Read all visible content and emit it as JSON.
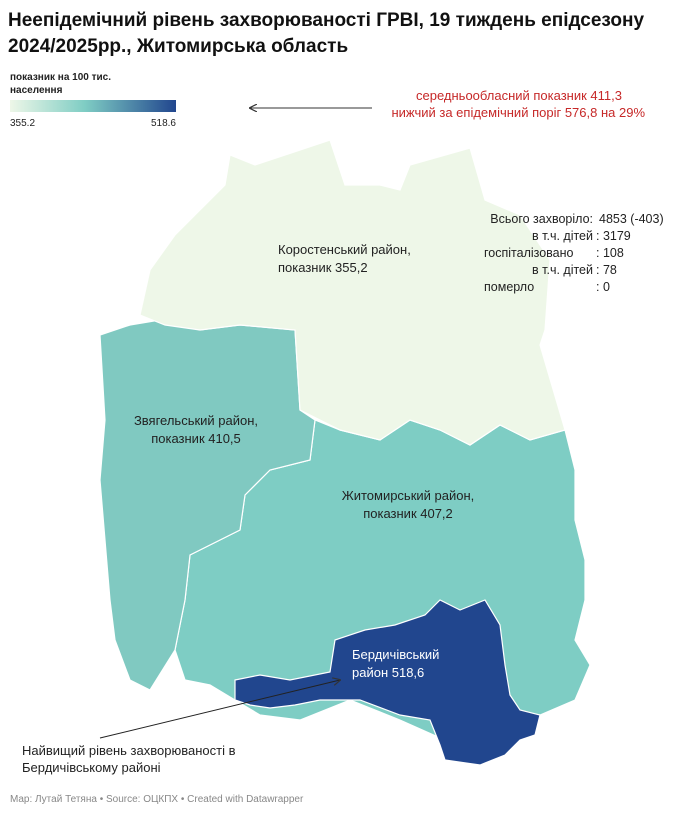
{
  "header": {
    "title_lines": [
      "Неепідемічний рівень захворюваності ГРВІ, 19 тиждень епідсезону",
      "2024/2025рр., Житомирська область"
    ]
  },
  "legend": {
    "label_lines": [
      "показник на 100 тис.",
      "населення"
    ],
    "min": 355.2,
    "max": 518.6
  },
  "annotation_top": [
    "середньообласний показник 411,3",
    "нижчий за епідемічний поріг 576,8 на 29%"
  ],
  "annotation_bottom": [
    "Найвищий рівень захворюваності в",
    "Бердичівському районі"
  ],
  "regions": [
    {
      "lines": [
        "Коростенський район,",
        "показник 355,2"
      ]
    },
    {
      "lines": [
        "Звягельський район,",
        "показник 410,5"
      ]
    },
    {
      "lines": [
        "Житомирський район,",
        "показник 407,2"
      ]
    },
    {
      "lines": [
        "Бердичівський",
        "район 518,6"
      ]
    }
  ],
  "stats": [
    [
      "Всього захворіло:",
      "4853 (-403)"
    ],
    [
      "в т.ч. дітей",
      ": 3179"
    ],
    [
      "госпіталізовано",
      ": 108"
    ],
    [
      "в т.ч. дітей",
      ": 78"
    ],
    [
      "померло",
      ": 0"
    ]
  ],
  "footer": "Map: Лутай Тетяна • Source: ОЦКПХ • Created with Datawrapper"
}
